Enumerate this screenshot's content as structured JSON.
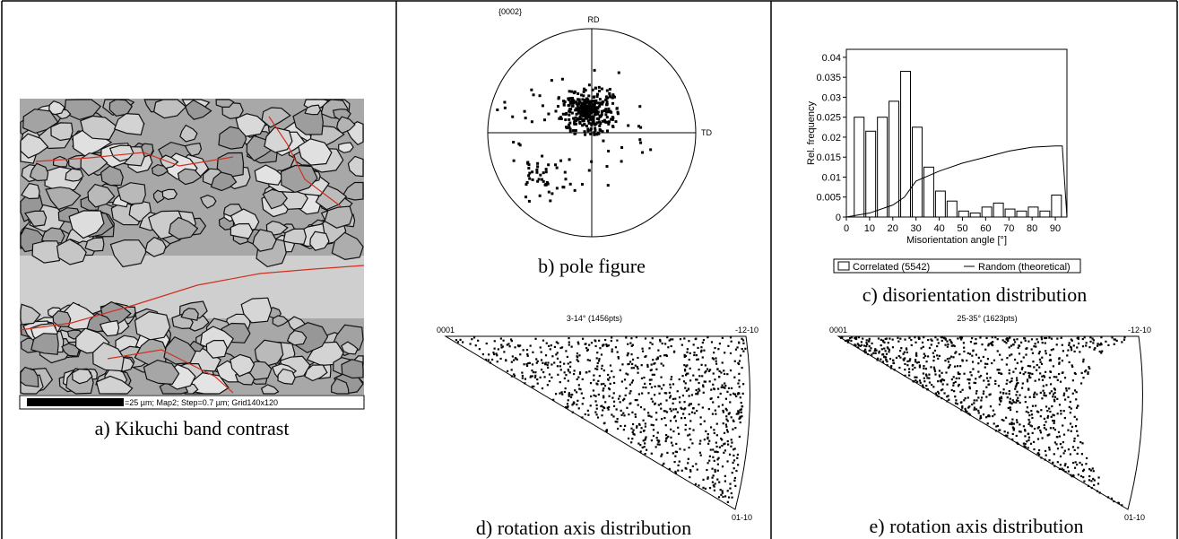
{
  "panels": {
    "a": {
      "scale_bar": "=25 µm; Map2; Step=0.7 µm; Grid140x120",
      "caption": "a) Kikuchi band contrast"
    },
    "b": {
      "plane": "{0002}",
      "rd": "RD",
      "td": "TD",
      "caption": "b) pole figure"
    },
    "d": {
      "title": "3-14° (1456pts)",
      "corner_left": "0001",
      "corner_right": "-12-10",
      "corner_bottom": "01-10",
      "caption": "d) rotation axis distribution"
    },
    "e": {
      "title": "25-35° (1623pts)",
      "corner_left": "0001",
      "corner_right": "-12-10",
      "corner_bottom": "01-10",
      "caption": "e) rotation axis distribution"
    }
  },
  "chart_data": {
    "type": "histogram",
    "caption": "c) disorientation distribution",
    "x_label": "Misorientation angle [°]",
    "y_label": "Rel. frequency",
    "bins": [
      3,
      8,
      13,
      18,
      23,
      28,
      33,
      38,
      43,
      48,
      53,
      58,
      63,
      68,
      73,
      78,
      83,
      88,
      93
    ],
    "series": [
      {
        "name": "Correlated (5542)",
        "color": "#ffffff",
        "values": [
          0.025,
          0.0215,
          0.025,
          0.029,
          0.0365,
          0.0225,
          0.0125,
          0.0065,
          0.004,
          0.0015,
          0.001,
          0.0025,
          0.0035,
          0.002,
          0.0015,
          0.0025,
          0.0015,
          0.0055
        ]
      },
      {
        "name": "Random (theoretical)",
        "color": "#000000",
        "x": [
          0,
          10,
          20,
          25,
          30,
          40,
          50,
          60,
          70,
          80,
          90,
          93,
          95
        ],
        "values": [
          0,
          0.001,
          0.003,
          0.005,
          0.009,
          0.0115,
          0.0135,
          0.015,
          0.0165,
          0.0175,
          0.0178,
          0.0178,
          0
        ]
      }
    ],
    "xlim": [
      0,
      95
    ],
    "xticks": [
      0,
      10,
      20,
      30,
      40,
      50,
      60,
      70,
      80,
      90
    ],
    "ylim": [
      0,
      0.042
    ],
    "yticks": [
      0,
      0.005,
      0.01,
      0.015,
      0.02,
      0.025,
      0.03,
      0.035,
      0.04
    ]
  }
}
